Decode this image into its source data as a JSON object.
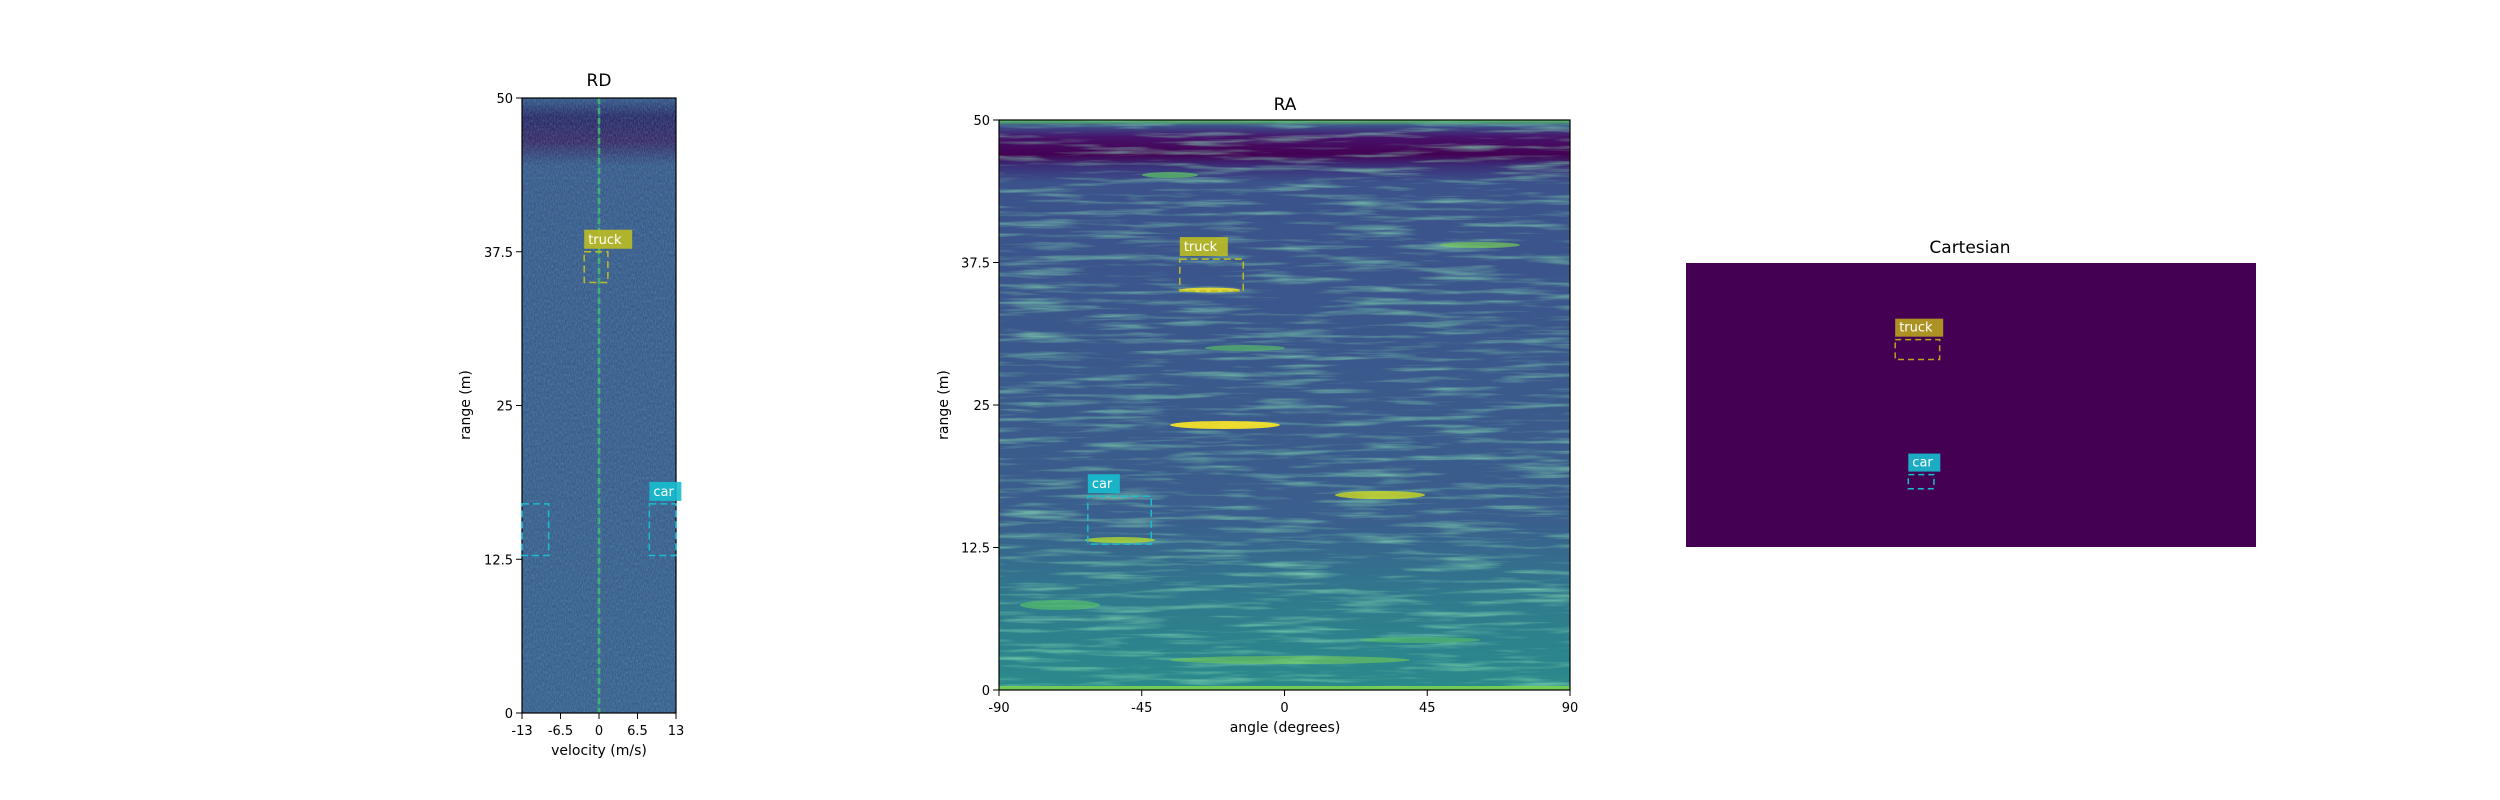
{
  "colors": {
    "viridis_dark": "#440154",
    "viridis_blue": "#3b528b",
    "viridis_teal": "#21918c",
    "viridis_green": "#5ec962",
    "viridis_yellow": "#fde725",
    "truck_box": "#bcbd22",
    "truck_box_cartesian": "#b8a21e",
    "car_box": "#17becf",
    "label_text": "#ffffff",
    "axis": "#000000"
  },
  "chart_data": [
    {
      "id": "rd",
      "type": "heatmap",
      "title": "RD",
      "xlabel": "velocity (m/s)",
      "ylabel": "range (m)",
      "xlim": [
        -13,
        13
      ],
      "ylim": [
        0,
        50
      ],
      "xticks": [
        -13,
        -6.5,
        0,
        6.5,
        13
      ],
      "xtick_labels": [
        "-13",
        "-6.5",
        "0",
        "6.5",
        "13"
      ],
      "yticks": [
        0,
        12.5,
        25,
        37.5,
        50
      ],
      "ytick_labels": [
        "0",
        "12.5",
        "25",
        "37.5",
        "50"
      ],
      "boxes": [
        {
          "label": "truck",
          "x0": -2.5,
          "x1": 1.5,
          "y0": 35.0,
          "y1": 37.5,
          "color_key": "truck_box"
        },
        {
          "label": "car",
          "x0": 8.5,
          "x1": 13,
          "y0": 12.8,
          "y1": 17.0,
          "color_key": "car_box"
        },
        {
          "label": "",
          "x0": -13,
          "x1": -8.5,
          "y0": 12.8,
          "y1": 17.0,
          "color_key": "car_box"
        }
      ]
    },
    {
      "id": "ra",
      "type": "heatmap",
      "title": "RA",
      "xlabel": "angle (degrees)",
      "ylabel": "range (m)",
      "xlim": [
        -90,
        90
      ],
      "ylim": [
        0,
        50
      ],
      "xticks": [
        -90,
        -45,
        0,
        45,
        90
      ],
      "xtick_labels": [
        "-90",
        "-45",
        "0",
        "45",
        "90"
      ],
      "yticks": [
        0,
        12.5,
        25,
        37.5,
        50
      ],
      "ytick_labels": [
        "0",
        "12.5",
        "25",
        "37.5",
        "50"
      ],
      "boxes": [
        {
          "label": "truck",
          "x0": -33,
          "x1": -13,
          "y0": 35.0,
          "y1": 37.8,
          "color_key": "truck_box"
        },
        {
          "label": "car",
          "x0": -62,
          "x1": -42,
          "y0": 12.8,
          "y1": 17.0,
          "color_key": "car_box"
        }
      ]
    },
    {
      "id": "cartesian",
      "type": "heatmap",
      "title": "Cartesian",
      "boxes": [
        {
          "label": "truck",
          "fx0": 0.367,
          "fx1": 0.445,
          "fy0": 0.27,
          "fy1": 0.34,
          "color_key": "truck_box_cartesian"
        },
        {
          "label": "car",
          "fx0": 0.39,
          "fx1": 0.435,
          "fy0": 0.745,
          "fy1": 0.795,
          "color_key": "car_box"
        }
      ]
    }
  ]
}
